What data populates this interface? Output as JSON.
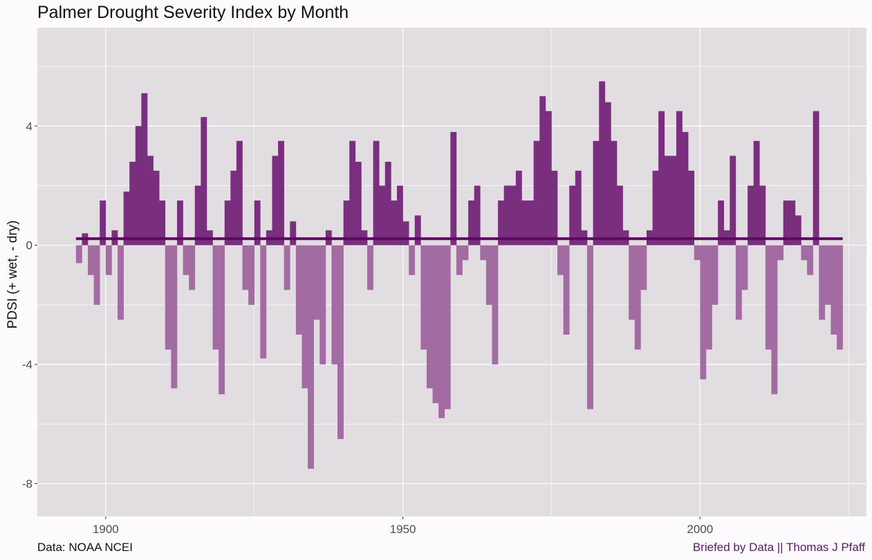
{
  "chart_data": {
    "type": "bar",
    "title": "Palmer Drought Severity Index by Month",
    "ylabel": "PDSI (+ wet, - dry)",
    "xlabel": "",
    "xlim": [
      1888.5,
      2028
    ],
    "ylim": [
      -9.1,
      7.3
    ],
    "x_ticks": [
      1900,
      1950,
      2000
    ],
    "x_tick_labels": [
      "1900",
      "1950",
      "2000"
    ],
    "y_ticks": [
      -8,
      -4,
      0,
      4
    ],
    "y_tick_labels": [
      "-8",
      "-4",
      "0",
      "4"
    ],
    "grid": true,
    "reference_line": {
      "value": 0.22
    },
    "colors": {
      "positive": "#7a2e7e",
      "negative": "#a26ba2",
      "mean_line": "#5c0a60",
      "panel": "#e1dde1",
      "grid": "#ffffff"
    },
    "x": [
      1895,
      1896,
      1897,
      1898,
      1899,
      1900,
      1901,
      1902,
      1903,
      1904,
      1905,
      1906,
      1907,
      1908,
      1909,
      1910,
      1911,
      1912,
      1913,
      1914,
      1915,
      1916,
      1917,
      1918,
      1919,
      1920,
      1921,
      1922,
      1923,
      1924,
      1925,
      1926,
      1927,
      1928,
      1929,
      1930,
      1931,
      1932,
      1933,
      1934,
      1935,
      1936,
      1937,
      1938,
      1939,
      1940,
      1941,
      1942,
      1943,
      1944,
      1945,
      1946,
      1947,
      1948,
      1949,
      1950,
      1951,
      1952,
      1953,
      1954,
      1955,
      1956,
      1957,
      1958,
      1959,
      1960,
      1961,
      1962,
      1963,
      1964,
      1965,
      1966,
      1967,
      1968,
      1969,
      1970,
      1971,
      1972,
      1973,
      1974,
      1975,
      1976,
      1977,
      1978,
      1979,
      1980,
      1981,
      1982,
      1983,
      1984,
      1985,
      1986,
      1987,
      1988,
      1989,
      1990,
      1991,
      1992,
      1993,
      1994,
      1995,
      1996,
      1997,
      1998,
      1999,
      2000,
      2001,
      2002,
      2003,
      2004,
      2005,
      2006,
      2007,
      2008,
      2009,
      2010,
      2011,
      2012,
      2013,
      2014,
      2015,
      2016,
      2017,
      2018,
      2019,
      2020,
      2021,
      2022,
      2023
    ],
    "values": [
      -0.6,
      0.4,
      -1.0,
      -2.0,
      1.5,
      -1.0,
      0.5,
      -2.5,
      1.8,
      2.8,
      4.0,
      5.1,
      3.0,
      2.5,
      1.5,
      -3.5,
      -4.8,
      1.5,
      -1.0,
      -1.5,
      2.0,
      4.3,
      0.5,
      -3.5,
      -5.0,
      1.5,
      2.5,
      3.5,
      -1.5,
      -2.0,
      1.5,
      -3.8,
      0.5,
      3.0,
      3.5,
      -1.5,
      0.8,
      -3.0,
      -4.8,
      -7.5,
      -2.5,
      -4.0,
      0.5,
      -4.0,
      -6.5,
      1.5,
      3.5,
      2.8,
      0.5,
      -1.5,
      3.5,
      2.0,
      2.8,
      1.5,
      2.0,
      0.8,
      -1.0,
      1.0,
      -3.5,
      -4.8,
      -5.3,
      -5.8,
      -5.5,
      3.8,
      -1.0,
      -0.5,
      1.5,
      2.0,
      -0.5,
      -2.0,
      -4.0,
      1.5,
      2.0,
      2.0,
      2.5,
      1.5,
      1.5,
      3.5,
      5.0,
      4.5,
      2.5,
      -1.0,
      -3.0,
      2.0,
      2.5,
      0.5,
      -5.5,
      3.5,
      5.5,
      4.8,
      3.5,
      2.0,
      0.5,
      -2.5,
      -3.5,
      -1.5,
      0.5,
      2.5,
      4.5,
      3.0,
      3.0,
      4.5,
      3.8,
      2.5,
      -0.5,
      -4.5,
      -3.5,
      -2.0,
      1.5,
      0.5,
      3.0,
      -2.5,
      -1.5,
      2.0,
      3.5,
      2.0,
      -3.5,
      -5.0,
      -0.5,
      1.5,
      1.5,
      1.0,
      -0.5,
      -1.0,
      4.5,
      -2.5,
      -2.0,
      -3.0,
      -3.5
    ]
  },
  "caption_left": "Data: NOAA NCEI",
  "caption_right": "Briefed by Data || Thomas J Pfaff"
}
